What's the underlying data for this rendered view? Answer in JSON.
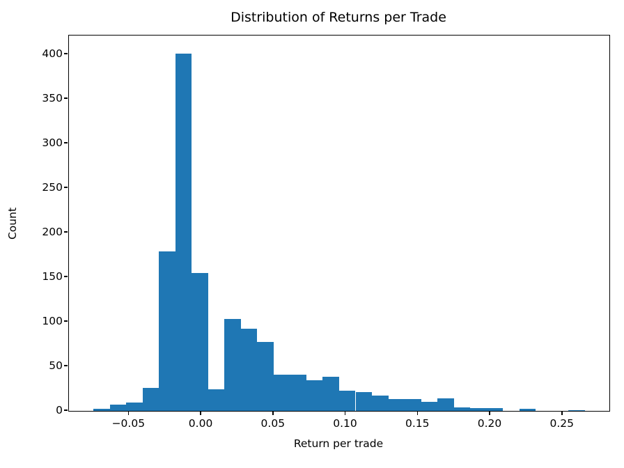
{
  "chart_data": {
    "type": "bar",
    "subtype": "histogram",
    "title": "Distribution of Returns per Trade",
    "xlabel": "Return per trade",
    "ylabel": "Count",
    "bar_color": "#1f77b4",
    "grid": false,
    "legend": null,
    "bin_start": -0.0746,
    "bin_width": 0.011333,
    "counts": [
      2,
      7,
      9,
      26,
      179,
      401,
      155,
      24,
      103,
      92,
      77,
      41,
      41,
      34,
      38,
      23,
      21,
      17,
      13,
      13,
      10,
      14,
      4,
      3,
      3,
      0,
      2,
      0,
      0,
      1
    ],
    "xlim": [
      -0.0916,
      0.2824
    ],
    "ylim": [
      0,
      421
    ],
    "xticks": [
      -0.05,
      0.0,
      0.05,
      0.1,
      0.15,
      0.2,
      0.25
    ],
    "xtick_labels": [
      "−0.05",
      "0.00",
      "0.05",
      "0.10",
      "0.15",
      "0.20",
      "0.25"
    ],
    "yticks": [
      0,
      50,
      100,
      150,
      200,
      250,
      300,
      350,
      400
    ],
    "ytick_labels": [
      "0",
      "50",
      "100",
      "150",
      "200",
      "250",
      "300",
      "350",
      "400"
    ]
  }
}
